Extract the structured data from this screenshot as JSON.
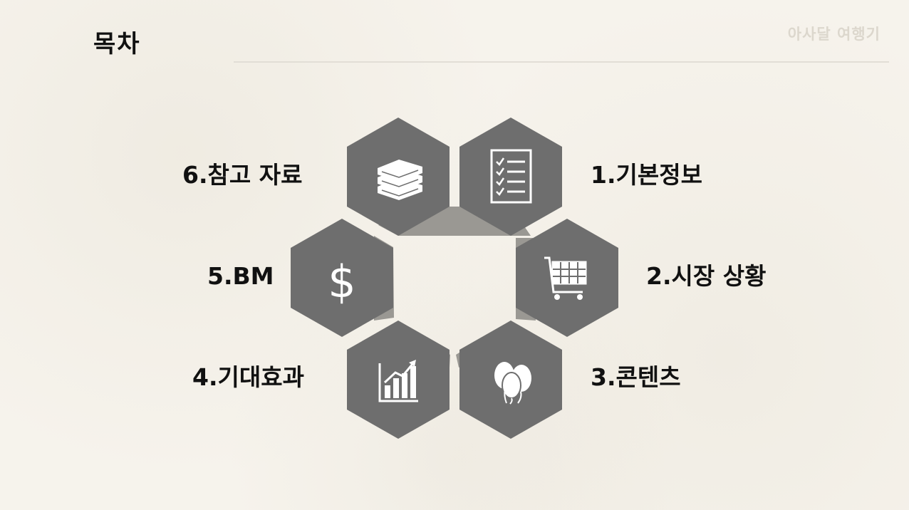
{
  "header": {
    "title": "목차",
    "brand": "아사달 여행기"
  },
  "toc": [
    {
      "label": "1.기본정보",
      "icon": "checklist-icon"
    },
    {
      "label": "2.시장 상황",
      "icon": "shopping-cart-icon"
    },
    {
      "label": "3.콘텐츠",
      "icon": "balloons-icon"
    },
    {
      "label": "4.기대효과",
      "icon": "bar-chart-growth-icon"
    },
    {
      "label": "5.BM",
      "icon": "dollar-icon"
    },
    {
      "label": "6.참고 자료",
      "icon": "books-icon"
    }
  ],
  "colors": {
    "hexagon": "#6e6e6e",
    "connector": "#9a9893",
    "icon": "#ffffff"
  }
}
